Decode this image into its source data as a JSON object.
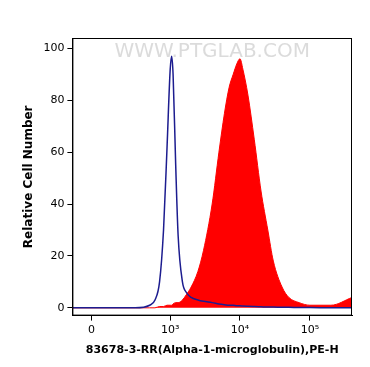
{
  "chart_data": {
    "type": "line",
    "x_label": "83678-3-RR(Alpha-1-microglobulin),PE-H",
    "y_label": "Relative Cell Number",
    "annotations": [
      "WWW.PTGLAB.COM"
    ],
    "log": "x",
    "grid": false,
    "xlim": [
      -100,
      400000
    ],
    "xticks": [
      0,
      {
        "value": 1000,
        "label": "10³"
      },
      {
        "value": 10000,
        "label": "10⁴"
      },
      {
        "value": 100000,
        "label": "10⁵"
      }
    ],
    "ylim": [
      -3,
      104
    ],
    "yticks": [
      0,
      20,
      40,
      60,
      80,
      100
    ],
    "x": [
      -100,
      300,
      500,
      600,
      700,
      800,
      900,
      1000,
      1050,
      1100,
      1200,
      1300,
      1500,
      1700,
      2000,
      2500,
      3000,
      4000,
      5000,
      6000,
      7000,
      8000,
      9000,
      10000,
      11000,
      13000,
      16000,
      20000,
      25000,
      30000,
      40000,
      50000,
      70000,
      100000,
      200000,
      400000
    ],
    "series": [
      {
        "color": "#1c1c8f",
        "type": "line",
        "values": [
          0,
          0,
          1,
          3,
          10,
          30,
          62,
          92,
          97,
          90,
          55,
          28,
          10,
          6,
          4,
          3,
          2.5,
          2,
          1.5,
          1.2,
          1,
          1,
          0.8,
          0.8,
          0.7,
          0.6,
          0.5,
          0.4,
          0.3,
          0.3,
          0.2,
          0.2,
          0.1,
          0.1,
          0,
          0
        ]
      },
      {
        "color": "#ff0000",
        "type": "area",
        "values": [
          0,
          0,
          0,
          0,
          0.5,
          0.5,
          1,
          1,
          1,
          1.5,
          2,
          2,
          3,
          5,
          8,
          14,
          22,
          40,
          60,
          75,
          85,
          90,
          94,
          96,
          92,
          82,
          65,
          45,
          30,
          18,
          8,
          4,
          2,
          1,
          1,
          4
        ]
      }
    ]
  }
}
